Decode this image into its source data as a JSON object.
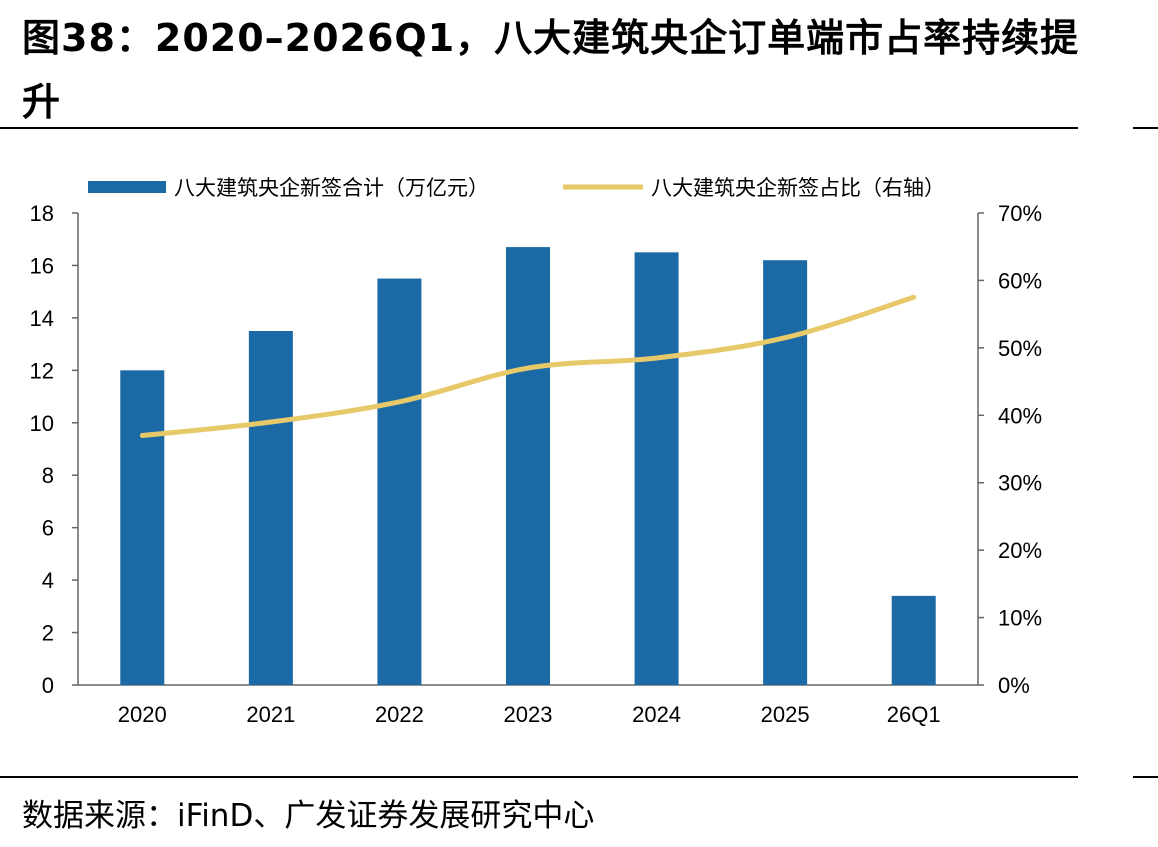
{
  "header": {
    "title": "图38：2020–2026Q1，八大建筑央企订单端市占率持续提升"
  },
  "footer": {
    "source": "数据来源：iFinD、广发证券发展研究中心"
  },
  "chart_data": {
    "type": "bar",
    "categories": [
      "2020",
      "2021",
      "2022",
      "2023",
      "2024",
      "2025",
      "26Q1"
    ],
    "series": [
      {
        "name": "八大建筑央企新签合计（万亿元）",
        "type": "bar",
        "axis": "left",
        "values": [
          12.0,
          13.5,
          15.5,
          16.7,
          16.5,
          16.2,
          3.4
        ]
      },
      {
        "name": "八大建筑央企新签占比（右轴）",
        "type": "line",
        "axis": "right",
        "values": [
          0.37,
          0.39,
          0.42,
          0.47,
          0.485,
          0.515,
          0.575
        ]
      }
    ],
    "y_left": {
      "ylim": [
        0,
        18
      ],
      "ticks": [
        "0",
        "2",
        "4",
        "6",
        "8",
        "10",
        "12",
        "14",
        "16",
        "18"
      ]
    },
    "y_right": {
      "ylim": [
        0,
        0.7
      ],
      "ticks": [
        "0%",
        "10%",
        "20%",
        "30%",
        "40%",
        "50%",
        "60%",
        "70%"
      ]
    },
    "legend_position": "top",
    "grid": false,
    "colors": {
      "bar": "#1B6AA5",
      "line": "#E7C96A"
    }
  }
}
